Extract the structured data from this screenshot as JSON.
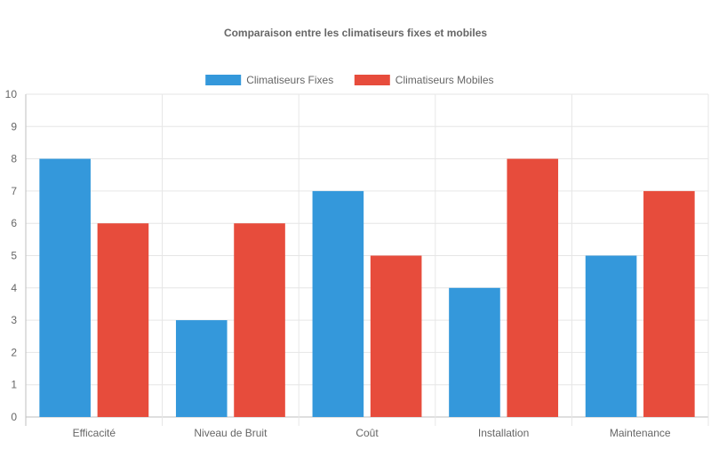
{
  "chart_data": {
    "type": "bar",
    "title": "Comparaison entre les climatiseurs fixes et mobiles",
    "categories": [
      "Efficacité",
      "Niveau de Bruit",
      "Coût",
      "Installation",
      "Maintenance"
    ],
    "series": [
      {
        "name": "Climatiseurs Fixes",
        "values": [
          8,
          3,
          7,
          4,
          5
        ],
        "color": "#3498db"
      },
      {
        "name": "Climatiseurs Mobiles",
        "values": [
          6,
          6,
          5,
          8,
          7
        ],
        "color": "#e74c3c"
      }
    ],
    "ylim": [
      0,
      10
    ],
    "yticks": [
      0,
      1,
      2,
      3,
      4,
      5,
      6,
      7,
      8,
      9,
      10
    ],
    "grid": true,
    "legend_position": "top"
  }
}
